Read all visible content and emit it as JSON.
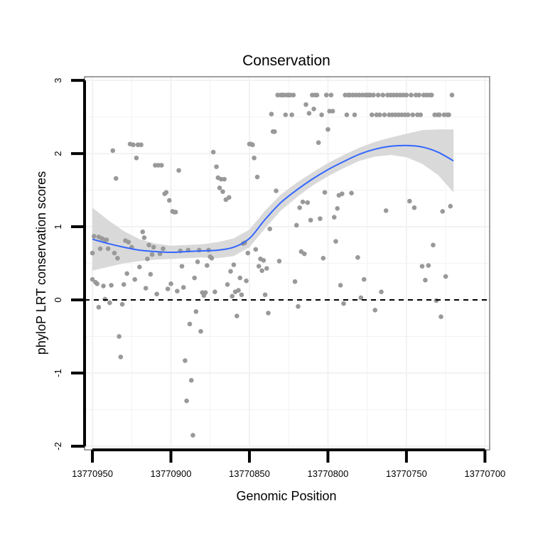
{
  "chart_data": {
    "type": "scatter",
    "title": "Conservation",
    "xlabel": "Genomic Position",
    "ylabel": "phyloP LRT conservation scores",
    "x_reversed": true,
    "xlim": [
      13770955,
      13770697
    ],
    "ylim": [
      -2.05,
      3.05
    ],
    "x_ticks": [
      13770950,
      13770900,
      13770850,
      13770800,
      13770750,
      13770700
    ],
    "x_tick_labels": [
      "13770950",
      "13770900",
      "13770850",
      "13770800",
      "13770750",
      "13770700"
    ],
    "y_ticks": [
      -2,
      -1,
      0,
      1,
      2,
      3
    ],
    "y_tick_labels": [
      "-2",
      "-1",
      "0",
      "1",
      "2",
      "3"
    ],
    "reference_line": {
      "y": 0,
      "style": "dashed"
    },
    "colors": {
      "points": "#999999",
      "smooth": "#3366ff",
      "ribbon": "#d9d9d9",
      "grid": "#f2f2f2",
      "panel_border": "#808080",
      "axis": "#000000"
    },
    "points": [
      [
        13770950,
        0.28
      ],
      [
        13770950,
        0.64
      ],
      [
        13770949,
        0.87
      ],
      [
        13770948,
        0.24
      ],
      [
        13770947,
        0.22
      ],
      [
        13770946,
        0.86
      ],
      [
        13770946,
        -0.1
      ],
      [
        13770945,
        0.7
      ],
      [
        13770944,
        0.84
      ],
      [
        13770943,
        0.19
      ],
      [
        13770942,
        0.82
      ],
      [
        13770942,
        0.01
      ],
      [
        13770941,
        0.82
      ],
      [
        13770940,
        0.7
      ],
      [
        13770939,
        -0.04
      ],
      [
        13770938,
        0.2
      ],
      [
        13770937,
        2.04
      ],
      [
        13770936,
        0.64
      ],
      [
        13770935,
        1.66
      ],
      [
        13770934,
        0.57
      ],
      [
        13770933,
        -0.5
      ],
      [
        13770932,
        -0.78
      ],
      [
        13770931,
        -0.06
      ],
      [
        13770930,
        0.21
      ],
      [
        13770929,
        0.81
      ],
      [
        13770928,
        0.36
      ],
      [
        13770927,
        0.79
      ],
      [
        13770926,
        2.13
      ],
      [
        13770925,
        0.72
      ],
      [
        13770924,
        2.12
      ],
      [
        13770923,
        0.28
      ],
      [
        13770922,
        1.94
      ],
      [
        13770921,
        2.12
      ],
      [
        13770920,
        0.45
      ],
      [
        13770919,
        2.12
      ],
      [
        13770918,
        0.93
      ],
      [
        13770917,
        0.85
      ],
      [
        13770916,
        0.16
      ],
      [
        13770915,
        0.56
      ],
      [
        13770914,
        0.75
      ],
      [
        13770913,
        0.35
      ],
      [
        13770912,
        0.62
      ],
      [
        13770911,
        0.72
      ],
      [
        13770910,
        1.84
      ],
      [
        13770909,
        0.08
      ],
      [
        13770908,
        1.84
      ],
      [
        13770907,
        0.63
      ],
      [
        13770906,
        1.84
      ],
      [
        13770905,
        0.7
      ],
      [
        13770904,
        1.45
      ],
      [
        13770903,
        1.47
      ],
      [
        13770902,
        0.15
      ],
      [
        13770901,
        1.36
      ],
      [
        13770900,
        0.22
      ],
      [
        13770899,
        1.21
      ],
      [
        13770898,
        1.2
      ],
      [
        13770897,
        1.2
      ],
      [
        13770896,
        0.12
      ],
      [
        13770895,
        1.77
      ],
      [
        13770894,
        0.67
      ],
      [
        13770893,
        0.46
      ],
      [
        13770892,
        0.17
      ],
      [
        13770891,
        -0.83
      ],
      [
        13770890,
        -1.38
      ],
      [
        13770889,
        0.68
      ],
      [
        13770888,
        -0.33
      ],
      [
        13770887,
        -1.1
      ],
      [
        13770886,
        -1.85
      ],
      [
        13770885,
        0.3
      ],
      [
        13770884,
        -0.16
      ],
      [
        13770883,
        0.52
      ],
      [
        13770882,
        0.68
      ],
      [
        13770881,
        -0.43
      ],
      [
        13770880,
        0.1
      ],
      [
        13770879,
        0.06
      ],
      [
        13770878,
        0.1
      ],
      [
        13770877,
        0.47
      ],
      [
        13770876,
        0.68
      ],
      [
        13770875,
        0.59
      ],
      [
        13770874,
        0.57
      ],
      [
        13770873,
        2.02
      ],
      [
        13770872,
        0.11
      ],
      [
        13770871,
        1.82
      ],
      [
        13770870,
        1.67
      ],
      [
        13770869,
        1.53
      ],
      [
        13770868,
        1.65
      ],
      [
        13770867,
        1.48
      ],
      [
        13770866,
        1.65
      ],
      [
        13770865,
        1.37
      ],
      [
        13770864,
        0.21
      ],
      [
        13770863,
        1.4
      ],
      [
        13770862,
        0.39
      ],
      [
        13770861,
        0.05
      ],
      [
        13770860,
        0.48
      ],
      [
        13770859,
        0.11
      ],
      [
        13770858,
        -0.22
      ],
      [
        13770857,
        0.13
      ],
      [
        13770856,
        0.3
      ],
      [
        13770855,
        0.07
      ],
      [
        13770854,
        0.77
      ],
      [
        13770853,
        0.78
      ],
      [
        13770852,
        0.26
      ],
      [
        13770851,
        0.64
      ],
      [
        13770850,
        2.13
      ],
      [
        13770849,
        2.13
      ],
      [
        13770848,
        2.12
      ],
      [
        13770847,
        1.94
      ],
      [
        13770846,
        0.69
      ],
      [
        13770845,
        1.68
      ],
      [
        13770844,
        0.46
      ],
      [
        13770843,
        0.56
      ],
      [
        13770842,
        0.4
      ],
      [
        13770841,
        0.54
      ],
      [
        13770840,
        0.07
      ],
      [
        13770839,
        0.43
      ],
      [
        13770838,
        -0.18
      ],
      [
        13770837,
        0.97
      ],
      [
        13770836,
        2.54
      ],
      [
        13770835,
        2.3
      ],
      [
        13770834,
        2.3
      ],
      [
        13770833,
        1.49
      ],
      [
        13770832,
        2.8
      ],
      [
        13770831,
        0.53
      ],
      [
        13770830,
        2.8
      ],
      [
        13770829,
        2.8
      ],
      [
        13770828,
        2.8
      ],
      [
        13770827,
        2.53
      ],
      [
        13770826,
        2.8
      ],
      [
        13770825,
        2.8
      ],
      [
        13770824,
        2.8
      ],
      [
        13770823,
        2.53
      ],
      [
        13770822,
        2.8
      ],
      [
        13770821,
        0.25
      ],
      [
        13770820,
        1.02
      ],
      [
        13770819,
        -0.09
      ],
      [
        13770818,
        1.26
      ],
      [
        13770817,
        0.66
      ],
      [
        13770816,
        1.34
      ],
      [
        13770815,
        0.63
      ],
      [
        13770814,
        2.67
      ],
      [
        13770813,
        1.33
      ],
      [
        13770812,
        2.55
      ],
      [
        13770811,
        1.09
      ],
      [
        13770810,
        2.8
      ],
      [
        13770809,
        2.61
      ],
      [
        13770808,
        2.8
      ],
      [
        13770807,
        2.8
      ],
      [
        13770806,
        2.15
      ],
      [
        13770805,
        1.11
      ],
      [
        13770804,
        2.53
      ],
      [
        13770803,
        0.57
      ],
      [
        13770802,
        1.47
      ],
      [
        13770801,
        2.8
      ],
      [
        13770800,
        2.33
      ],
      [
        13770799,
        2.58
      ],
      [
        13770798,
        2.8
      ],
      [
        13770797,
        2.58
      ],
      [
        13770796,
        1.13
      ],
      [
        13770795,
        0.8
      ],
      [
        13770794,
        1.25
      ],
      [
        13770793,
        1.43
      ],
      [
        13770792,
        0.2
      ],
      [
        13770791,
        1.45
      ],
      [
        13770790,
        -0.05
      ],
      [
        13770789,
        2.8
      ],
      [
        13770788,
        2.53
      ],
      [
        13770787,
        2.8
      ],
      [
        13770786,
        2.8
      ],
      [
        13770785,
        1.46
      ],
      [
        13770784,
        2.8
      ],
      [
        13770783,
        2.53
      ],
      [
        13770782,
        2.8
      ],
      [
        13770781,
        0.58
      ],
      [
        13770780,
        2.8
      ],
      [
        13770779,
        0.03
      ],
      [
        13770778,
        2.8
      ],
      [
        13770777,
        0.28
      ],
      [
        13770776,
        2.8
      ],
      [
        13770775,
        2.8
      ],
      [
        13770774,
        2.8
      ],
      [
        13770773,
        2.8
      ],
      [
        13770772,
        2.53
      ],
      [
        13770771,
        2.8
      ],
      [
        13770770,
        -0.14
      ],
      [
        13770769,
        2.53
      ],
      [
        13770768,
        2.8
      ],
      [
        13770767,
        2.53
      ],
      [
        13770766,
        0.11
      ],
      [
        13770765,
        2.8
      ],
      [
        13770764,
        2.53
      ],
      [
        13770763,
        1.22
      ],
      [
        13770762,
        2.8
      ],
      [
        13770761,
        2.53
      ],
      [
        13770760,
        2.8
      ],
      [
        13770759,
        2.53
      ],
      [
        13770758,
        2.8
      ],
      [
        13770757,
        2.53
      ],
      [
        13770756,
        2.8
      ],
      [
        13770755,
        2.53
      ],
      [
        13770754,
        2.8
      ],
      [
        13770753,
        2.53
      ],
      [
        13770752,
        2.8
      ],
      [
        13770751,
        2.53
      ],
      [
        13770750,
        2.8
      ],
      [
        13770749,
        2.53
      ],
      [
        13770748,
        1.35
      ],
      [
        13770747,
        2.8
      ],
      [
        13770746,
        2.53
      ],
      [
        13770745,
        1.26
      ],
      [
        13770744,
        2.8
      ],
      [
        13770743,
        2.53
      ],
      [
        13770742,
        2.8
      ],
      [
        13770741,
        2.53
      ],
      [
        13770740,
        0.46
      ],
      [
        13770739,
        2.8
      ],
      [
        13770738,
        0.27
      ],
      [
        13770737,
        2.8
      ],
      [
        13770736,
        0.47
      ],
      [
        13770735,
        2.8
      ],
      [
        13770734,
        2.8
      ],
      [
        13770733,
        0.75
      ],
      [
        13770732,
        2.53
      ],
      [
        13770731,
        -0.01
      ],
      [
        13770730,
        2.53
      ],
      [
        13770729,
        2.53
      ],
      [
        13770728,
        -0.23
      ],
      [
        13770727,
        1.21
      ],
      [
        13770726,
        2.53
      ],
      [
        13770725,
        0.32
      ],
      [
        13770724,
        2.53
      ],
      [
        13770723,
        2.53
      ],
      [
        13770722,
        1.28
      ],
      [
        13770721,
        2.8
      ]
    ],
    "smooth_line": {
      "x": [
        13770950,
        13770940,
        13770930,
        13770920,
        13770910,
        13770900,
        13770890,
        13770880,
        13770870,
        13770860,
        13770850,
        13770840,
        13770830,
        13770820,
        13770810,
        13770800,
        13770790,
        13770780,
        13770770,
        13770760,
        13770750,
        13770740,
        13770730,
        13770720
      ],
      "y": [
        0.83,
        0.77,
        0.72,
        0.68,
        0.66,
        0.65,
        0.66,
        0.67,
        0.68,
        0.72,
        0.84,
        1.1,
        1.33,
        1.5,
        1.65,
        1.78,
        1.89,
        1.99,
        2.06,
        2.1,
        2.11,
        2.09,
        2.02,
        1.9
      ],
      "lower": [
        0.4,
        0.45,
        0.5,
        0.53,
        0.55,
        0.56,
        0.57,
        0.58,
        0.57,
        0.6,
        0.72,
        0.98,
        1.22,
        1.4,
        1.56,
        1.69,
        1.8,
        1.9,
        1.96,
        1.98,
        1.95,
        1.86,
        1.71,
        1.47
      ],
      "upper": [
        1.26,
        1.09,
        0.94,
        0.83,
        0.77,
        0.74,
        0.75,
        0.76,
        0.79,
        0.84,
        0.96,
        1.22,
        1.44,
        1.6,
        1.74,
        1.87,
        1.98,
        2.08,
        2.16,
        2.22,
        2.27,
        2.32,
        2.33,
        2.33
      ]
    }
  }
}
